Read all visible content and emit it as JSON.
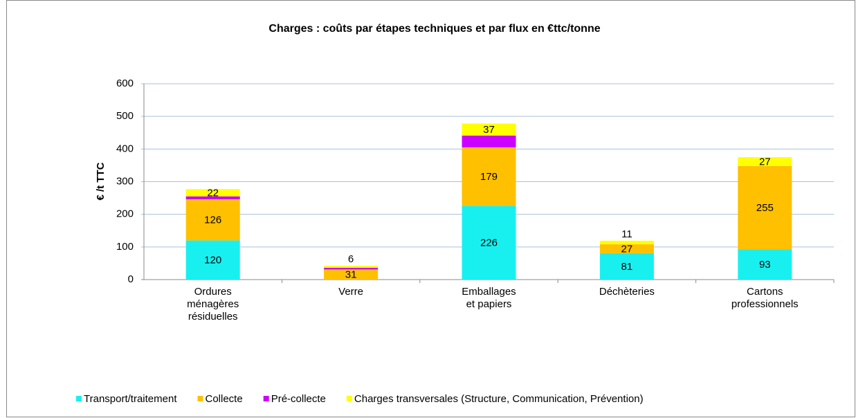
{
  "chart_data": {
    "type": "stacked_bar",
    "title": "Charges : coûts par étapes techniques et par flux en €ttc/tonne",
    "y_label": "€ /t TTC",
    "categories": [
      [
        "Ordures",
        "ménagères",
        "résiduelles"
      ],
      [
        "Verre"
      ],
      [
        "Emballages",
        "et papiers"
      ],
      [
        "Déchèteries"
      ],
      [
        "Cartons",
        "professionnels"
      ]
    ],
    "series": [
      {
        "name": "Transport/traitement",
        "color": "#18f0f0",
        "values": [
          120,
          null,
          226,
          81,
          93
        ],
        "data_labels": true
      },
      {
        "name": "Collecte",
        "color": "#ffc000",
        "values": [
          126,
          31,
          179,
          27,
          255
        ],
        "data_labels": true
      },
      {
        "name": "Pré-collecte",
        "color": "#cc00ff",
        "values": [
          9,
          5,
          36,
          null,
          null
        ],
        "data_labels": false
      },
      {
        "name": "Charges transversales (Structure, Communication, Prévention)",
        "color": "#ffff00",
        "values": [
          22,
          6,
          37,
          11,
          27
        ],
        "data_labels": true
      }
    ],
    "ylim": [
      0,
      600
    ],
    "yticks": [
      0,
      100,
      200,
      300,
      400,
      500,
      600
    ],
    "grid": true,
    "legend": "bottom"
  }
}
